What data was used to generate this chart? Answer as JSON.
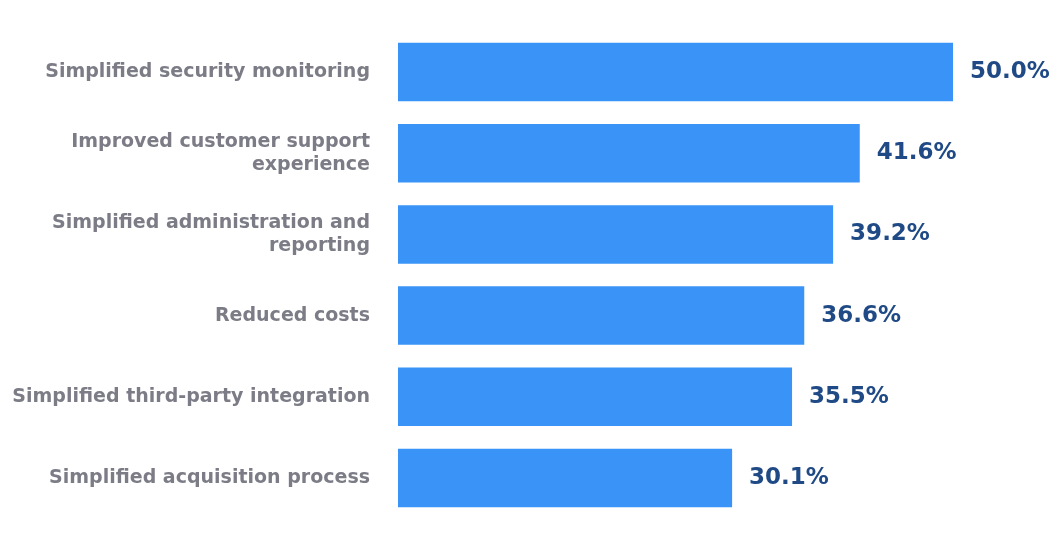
{
  "chart_data": {
    "type": "bar",
    "orientation": "horizontal",
    "categories": [
      "Simplified security monitoring",
      "Improved customer support experience",
      "Simplified administration and reporting",
      "Reduced costs",
      "Simplified third-party integration",
      "Simplified acquisition process"
    ],
    "values": [
      50.0,
      41.6,
      39.2,
      36.6,
      35.5,
      30.1
    ],
    "value_labels": [
      "50.0%",
      "41.6%",
      "39.2%",
      "36.6%",
      "35.5%",
      "30.1%"
    ],
    "color": "#3a94f7"
  }
}
